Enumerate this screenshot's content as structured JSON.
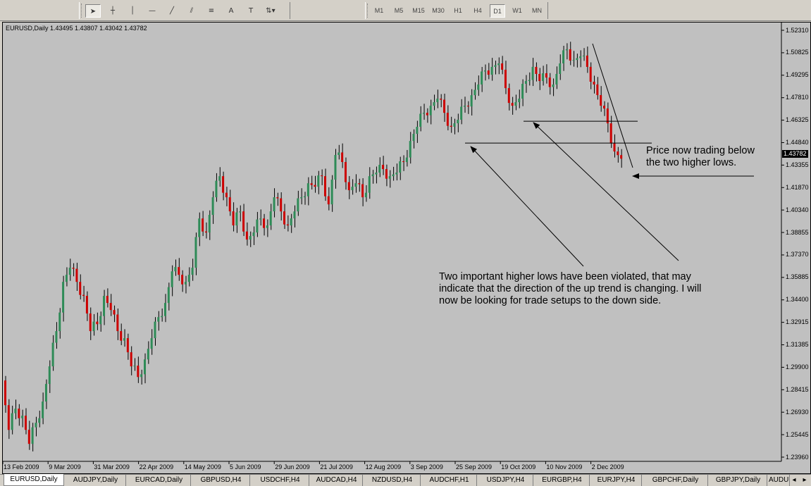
{
  "toolbar": {
    "tools": [
      {
        "name": "cursor-icon",
        "glyph": "➤"
      },
      {
        "name": "crosshair-icon",
        "glyph": "┼"
      },
      {
        "name": "vertical-line-icon",
        "glyph": "│"
      },
      {
        "name": "horizontal-line-icon",
        "glyph": "—"
      },
      {
        "name": "trendline-icon",
        "glyph": "╱"
      },
      {
        "name": "channel-icon",
        "glyph": "⫽"
      },
      {
        "name": "fibonacci-icon",
        "glyph": "≡"
      },
      {
        "name": "text-icon",
        "glyph": "A"
      },
      {
        "name": "text-label-icon",
        "glyph": "T"
      },
      {
        "name": "arrows-icon",
        "glyph": "⇅▾"
      }
    ],
    "timeframes": [
      "M1",
      "M5",
      "M15",
      "M30",
      "H1",
      "H4",
      "D1",
      "W1",
      "MN"
    ],
    "active_timeframe": "D1"
  },
  "chart": {
    "info": "EURUSD,Daily  1.43495 1.43807 1.43042 1.43782",
    "current_price": "1.43782",
    "background": "#c0c0c0",
    "bull_color": "#2e8b57",
    "bear_color": "#cc0000",
    "annotation_1": [
      "Price now trading below",
      "the two higher lows."
    ],
    "annotation_2": [
      "Two important higher lows have been violated, that may",
      "indicate that the direction of the up trend is changing. I will",
      "now be looking for trade setups to the down side."
    ]
  },
  "chart_data": {
    "type": "candlestick",
    "symbol": "EURUSD",
    "timeframe": "Daily",
    "last_bar": {
      "open": 1.43495,
      "high": 1.43807,
      "low": 1.43042,
      "close": 1.43782
    },
    "ylim": [
      1.2396,
      1.5231
    ],
    "price_ticks": [
      "1.52310",
      "1.50825",
      "1.49295",
      "1.47810",
      "1.46325",
      "1.44840",
      "1.43355",
      "1.41870",
      "1.40340",
      "1.38855",
      "1.37370",
      "1.35885",
      "1.34400",
      "1.32915",
      "1.31385",
      "1.29900",
      "1.28415",
      "1.26930",
      "1.25445",
      "1.23960"
    ],
    "time_ticks": [
      "13 Feb 2009",
      "9 Mar 2009",
      "31 Mar 2009",
      "22 Apr 2009",
      "14 May 2009",
      "5 Jun 2009",
      "29 Jun 2009",
      "21 Jul 2009",
      "12 Aug 2009",
      "3 Sep 2009",
      "25 Sep 2009",
      "19 Oct 2009",
      "10 Nov 2009",
      "2 Dec 2009"
    ],
    "approx_closes": [
      1.2905,
      1.2577,
      1.2718,
      1.2671,
      1.2484,
      1.2624,
      1.2765,
      1.2999,
      1.3233,
      1.356,
      1.3654,
      1.356,
      1.3467,
      1.3233,
      1.3279,
      1.3467,
      1.3373,
      1.3233,
      1.3186,
      1.2999,
      1.2928,
      1.3045,
      1.3186,
      1.3326,
      1.342,
      1.363,
      1.3607,
      1.356,
      1.3654,
      1.3981,
      1.3888,
      1.4122,
      1.4262,
      1.4122,
      1.3935,
      1.4028,
      1.3841,
      1.3888,
      1.3981,
      1.3935,
      1.4122,
      1.4028,
      1.3935,
      1.4028,
      1.4122,
      1.4215,
      1.4192,
      1.4262,
      1.4075,
      1.4403,
      1.4356,
      1.4169,
      1.4215,
      1.4122,
      1.4262,
      1.4286,
      1.4309,
      1.4262,
      1.4286,
      1.4356,
      1.4496,
      1.459,
      1.4683,
      1.473,
      1.4777,
      1.4683,
      1.459,
      1.4637,
      1.473,
      1.48,
      1.4871,
      1.4964,
      1.4988,
      1.5011,
      1.4847,
      1.473,
      1.4777,
      1.4894,
      1.4988,
      1.4894,
      1.4917,
      1.4871,
      1.5011,
      1.5105,
      1.5034,
      1.5058,
      1.4988,
      1.4871,
      1.473,
      1.4613,
      1.4426,
      1.4378
    ],
    "horizontal_lines": [
      1.4482,
      1.4627
    ]
  },
  "tabs": [
    "EURUSD,Daily",
    "AUDJPY,Daily",
    "EURCAD,Daily",
    "GBPUSD,H4",
    "USDCHF,H4",
    "AUDCAD,H4",
    "NZDUSD,H4",
    "AUDCHF,H1",
    "USDJPY,H4",
    "EURGBP,H4",
    "EURJPY,H4",
    "GBPCHF,Daily",
    "GBPJPY,Daily",
    "AUDU:"
  ],
  "active_tab": "EURUSD,Daily"
}
